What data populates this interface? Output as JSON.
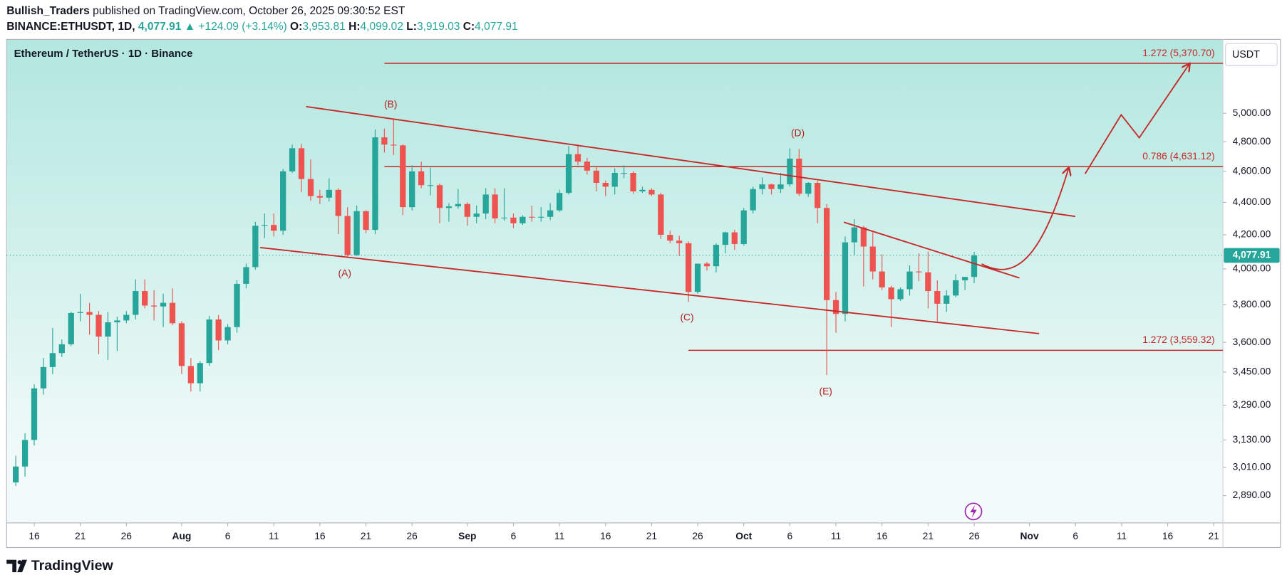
{
  "header": {
    "publisher": "Bullish_Traders",
    "published": "published on TradingView.com, October 26, 2025 09:30:52 EST",
    "symbol": "BINANCE:ETHUSDT, 1D,",
    "last": "4,077.91",
    "change": "▲ +124.09 (+3.14%)",
    "o_label": "O:",
    "o": "3,953.81",
    "h_label": "H:",
    "h": "4,099.02",
    "l_label": "L:",
    "l": "3,919.03",
    "c_label": "C:",
    "c": "4,077.91"
  },
  "chart_data": {
    "type": "candlestick",
    "title": "Ethereum / TetherUS · 1D · Binance",
    "currency": "USDT",
    "up_color": "#26a69a",
    "down_color": "#ef5350",
    "log_scale": true,
    "x": [
      "2025-07-14",
      "2025-07-15",
      "2025-07-16",
      "2025-07-17",
      "2025-07-18",
      "2025-07-19",
      "2025-07-20",
      "2025-07-21",
      "2025-07-22",
      "2025-07-23",
      "2025-07-24",
      "2025-07-25",
      "2025-07-26",
      "2025-07-27",
      "2025-07-28",
      "2025-07-29",
      "2025-07-30",
      "2025-07-31",
      "2025-08-01",
      "2025-08-02",
      "2025-08-03",
      "2025-08-04",
      "2025-08-05",
      "2025-08-06",
      "2025-08-07",
      "2025-08-08",
      "2025-08-09",
      "2025-08-10",
      "2025-08-11",
      "2025-08-12",
      "2025-08-13",
      "2025-08-14",
      "2025-08-15",
      "2025-08-16",
      "2025-08-17",
      "2025-08-18",
      "2025-08-19",
      "2025-08-20",
      "2025-08-21",
      "2025-08-22",
      "2025-08-23",
      "2025-08-24",
      "2025-08-25",
      "2025-08-26",
      "2025-08-27",
      "2025-08-28",
      "2025-08-29",
      "2025-08-30",
      "2025-08-31",
      "2025-09-01",
      "2025-09-02",
      "2025-09-03",
      "2025-09-04",
      "2025-09-05",
      "2025-09-06",
      "2025-09-07",
      "2025-09-08",
      "2025-09-09",
      "2025-09-10",
      "2025-09-11",
      "2025-09-12",
      "2025-09-13",
      "2025-09-14",
      "2025-09-15",
      "2025-09-16",
      "2025-09-17",
      "2025-09-18",
      "2025-09-19",
      "2025-09-20",
      "2025-09-21",
      "2025-09-22",
      "2025-09-23",
      "2025-09-24",
      "2025-09-25",
      "2025-09-26",
      "2025-09-27",
      "2025-09-28",
      "2025-09-29",
      "2025-09-30",
      "2025-10-01",
      "2025-10-02",
      "2025-10-03",
      "2025-10-04",
      "2025-10-05",
      "2025-10-06",
      "2025-10-07",
      "2025-10-08",
      "2025-10-09",
      "2025-10-10",
      "2025-10-11",
      "2025-10-12",
      "2025-10-13",
      "2025-10-14",
      "2025-10-15",
      "2025-10-16",
      "2025-10-17",
      "2025-10-18",
      "2025-10-19",
      "2025-10-20",
      "2025-10-21",
      "2025-10-22",
      "2025-10-23",
      "2025-10-24",
      "2025-10-25",
      "2025-10-26"
    ],
    "ohlc": [
      [
        2945,
        3060,
        2930,
        3013
      ],
      [
        3013,
        3160,
        2970,
        3130
      ],
      [
        3130,
        3390,
        3105,
        3370
      ],
      [
        3370,
        3520,
        3340,
        3475
      ],
      [
        3475,
        3675,
        3440,
        3545
      ],
      [
        3545,
        3615,
        3525,
        3590
      ],
      [
        3590,
        3760,
        3580,
        3755
      ],
      [
        3755,
        3860,
        3710,
        3760
      ],
      [
        3760,
        3810,
        3640,
        3745
      ],
      [
        3745,
        3765,
        3540,
        3630
      ],
      [
        3630,
        3760,
        3510,
        3705
      ],
      [
        3705,
        3735,
        3555,
        3715
      ],
      [
        3715,
        3765,
        3700,
        3745
      ],
      [
        3745,
        3940,
        3720,
        3875
      ],
      [
        3875,
        3940,
        3780,
        3795
      ],
      [
        3795,
        3880,
        3715,
        3790
      ],
      [
        3790,
        3860,
        3680,
        3810
      ],
      [
        3810,
        3890,
        3690,
        3700
      ],
      [
        3700,
        3710,
        3440,
        3480
      ],
      [
        3480,
        3520,
        3355,
        3395
      ],
      [
        3395,
        3505,
        3355,
        3495
      ],
      [
        3495,
        3740,
        3480,
        3720
      ],
      [
        3720,
        3745,
        3560,
        3610
      ],
      [
        3610,
        3695,
        3590,
        3680
      ],
      [
        3680,
        3935,
        3650,
        3915
      ],
      [
        3915,
        4030,
        3890,
        4010
      ],
      [
        4010,
        4280,
        3995,
        4255
      ],
      [
        4255,
        4330,
        4180,
        4260
      ],
      [
        4260,
        4330,
        4190,
        4225
      ],
      [
        4225,
        4615,
        4200,
        4600
      ],
      [
        4600,
        4780,
        4590,
        4755
      ],
      [
        4755,
        4785,
        4465,
        4550
      ],
      [
        4550,
        4680,
        4410,
        4440
      ],
      [
        4440,
        4480,
        4390,
        4430
      ],
      [
        4430,
        4555,
        4405,
        4480
      ],
      [
        4480,
        4490,
        4205,
        4315
      ],
      [
        4315,
        4370,
        4065,
        4080
      ],
      [
        4080,
        4380,
        4075,
        4345
      ],
      [
        4345,
        4350,
        4210,
        4230
      ],
      [
        4230,
        4885,
        4205,
        4830
      ],
      [
        4830,
        4890,
        4725,
        4780
      ],
      [
        4780,
        4956,
        4710,
        4775
      ],
      [
        4775,
        4780,
        4320,
        4370
      ],
      [
        4370,
        4640,
        4350,
        4600
      ],
      [
        4600,
        4665,
        4490,
        4510
      ],
      [
        4510,
        4625,
        4445,
        4510
      ],
      [
        4510,
        4520,
        4270,
        4365
      ],
      [
        4365,
        4395,
        4280,
        4375
      ],
      [
        4375,
        4485,
        4360,
        4390
      ],
      [
        4390,
        4400,
        4255,
        4310
      ],
      [
        4310,
        4380,
        4270,
        4330
      ],
      [
        4330,
        4490,
        4295,
        4450
      ],
      [
        4450,
        4490,
        4270,
        4300
      ],
      [
        4300,
        4490,
        4285,
        4305
      ],
      [
        4305,
        4330,
        4240,
        4270
      ],
      [
        4270,
        4320,
        4260,
        4310
      ],
      [
        4310,
        4380,
        4280,
        4305
      ],
      [
        4305,
        4370,
        4280,
        4310
      ],
      [
        4310,
        4395,
        4290,
        4350
      ],
      [
        4350,
        4480,
        4340,
        4460
      ],
      [
        4460,
        4770,
        4450,
        4715
      ],
      [
        4715,
        4780,
        4640,
        4665
      ],
      [
        4665,
        4690,
        4580,
        4605
      ],
      [
        4605,
        4630,
        4470,
        4525
      ],
      [
        4525,
        4540,
        4440,
        4500
      ],
      [
        4500,
        4620,
        4450,
        4590
      ],
      [
        4590,
        4640,
        4555,
        4590
      ],
      [
        4590,
        4600,
        4455,
        4470
      ],
      [
        4470,
        4500,
        4460,
        4480
      ],
      [
        4480,
        4490,
        4440,
        4450
      ],
      [
        4450,
        4460,
        4175,
        4200
      ],
      [
        4200,
        4225,
        4150,
        4165
      ],
      [
        4165,
        4195,
        4075,
        4150
      ],
      [
        4150,
        4160,
        3815,
        3870
      ],
      [
        3870,
        4030,
        3860,
        4030
      ],
      [
        4030,
        4040,
        3990,
        4015
      ],
      [
        4015,
        4150,
        3980,
        4140
      ],
      [
        4140,
        4220,
        4090,
        4215
      ],
      [
        4215,
        4230,
        4110,
        4145
      ],
      [
        4145,
        4365,
        4135,
        4350
      ],
      [
        4350,
        4500,
        4330,
        4485
      ],
      [
        4485,
        4560,
        4450,
        4515
      ],
      [
        4515,
        4520,
        4450,
        4485
      ],
      [
        4485,
        4590,
        4460,
        4515
      ],
      [
        4515,
        4755,
        4500,
        4685
      ],
      [
        4685,
        4750,
        4440,
        4455
      ],
      [
        4455,
        4530,
        4435,
        4525
      ],
      [
        4525,
        4540,
        4270,
        4365
      ],
      [
        4365,
        4390,
        3435,
        3825
      ],
      [
        3825,
        3870,
        3650,
        3750
      ],
      [
        3750,
        4190,
        3710,
        4155
      ],
      [
        4155,
        4295,
        4080,
        4245
      ],
      [
        4245,
        4255,
        3900,
        4130
      ],
      [
        4130,
        4215,
        3940,
        3985
      ],
      [
        3985,
        4085,
        3880,
        3895
      ],
      [
        3895,
        3905,
        3680,
        3830
      ],
      [
        3830,
        3895,
        3820,
        3885
      ],
      [
        3885,
        4020,
        3850,
        3985
      ],
      [
        3985,
        4090,
        3930,
        3980
      ],
      [
        3980,
        4100,
        3780,
        3875
      ],
      [
        3875,
        3935,
        3710,
        3805
      ],
      [
        3805,
        3880,
        3760,
        3850
      ],
      [
        3850,
        3970,
        3840,
        3935
      ],
      [
        3935,
        3955,
        3880,
        3953.81
      ],
      [
        3953.81,
        4099.02,
        3919.03,
        4077.91
      ]
    ],
    "last_price_label": "4,077.91",
    "xlim": [
      "2025-07-13",
      "2025-11-22"
    ],
    "xticks": [
      {
        "value": "2025-07-16",
        "label": "16"
      },
      {
        "value": "2025-07-21",
        "label": "21"
      },
      {
        "value": "2025-07-26",
        "label": "26"
      },
      {
        "value": "2025-08-01",
        "label": "Aug"
      },
      {
        "value": "2025-08-06",
        "label": "6"
      },
      {
        "value": "2025-08-11",
        "label": "11"
      },
      {
        "value": "2025-08-16",
        "label": "16"
      },
      {
        "value": "2025-08-21",
        "label": "21"
      },
      {
        "value": "2025-08-26",
        "label": "26"
      },
      {
        "value": "2025-09-01",
        "label": "Sep"
      },
      {
        "value": "2025-09-06",
        "label": "6"
      },
      {
        "value": "2025-09-11",
        "label": "11"
      },
      {
        "value": "2025-09-16",
        "label": "16"
      },
      {
        "value": "2025-09-21",
        "label": "21"
      },
      {
        "value": "2025-09-26",
        "label": "26"
      },
      {
        "value": "2025-10-01",
        "label": "Oct"
      },
      {
        "value": "2025-10-06",
        "label": "6"
      },
      {
        "value": "2025-10-11",
        "label": "11"
      },
      {
        "value": "2025-10-16",
        "label": "16"
      },
      {
        "value": "2025-10-21",
        "label": "21"
      },
      {
        "value": "2025-10-26",
        "label": "26"
      },
      {
        "value": "2025-11-01",
        "label": "Nov"
      },
      {
        "value": "2025-11-06",
        "label": "6"
      },
      {
        "value": "2025-11-11",
        "label": "11"
      },
      {
        "value": "2025-11-16",
        "label": "16"
      },
      {
        "value": "2025-11-21",
        "label": "21"
      }
    ],
    "ylim": [
      2779,
      5558
    ],
    "yticks": [
      {
        "value": 2890,
        "label": "2,890.00"
      },
      {
        "value": 3010,
        "label": "3,010.00"
      },
      {
        "value": 3130,
        "label": "3,130.00"
      },
      {
        "value": 3290,
        "label": "3,290.00"
      },
      {
        "value": 3450,
        "label": "3,450.00"
      },
      {
        "value": 3600,
        "label": "3,600.00"
      },
      {
        "value": 3800,
        "label": "3,800.00"
      },
      {
        "value": 4000,
        "label": "4,000.00"
      },
      {
        "value": 4200,
        "label": "4,200.00"
      },
      {
        "value": 4400,
        "label": "4,400.00"
      },
      {
        "value": 4600,
        "label": "4,600.00"
      },
      {
        "value": 4800,
        "label": "4,800.00"
      },
      {
        "value": 5000,
        "label": "5,000.00"
      }
    ],
    "levels": [
      {
        "label": "1.272 (5,370.70)",
        "price": 5370.7
      },
      {
        "label": "0.786 (4,631.12)",
        "price": 4631.12
      },
      {
        "label": "1.272 (3,559.32)",
        "price": 3559.32
      }
    ],
    "level_color": "#c62828",
    "wave_labels": [
      "(A)",
      "(B)",
      "(C)",
      "(D)",
      "(E)"
    ]
  },
  "footer": {
    "brand": "TradingView"
  }
}
